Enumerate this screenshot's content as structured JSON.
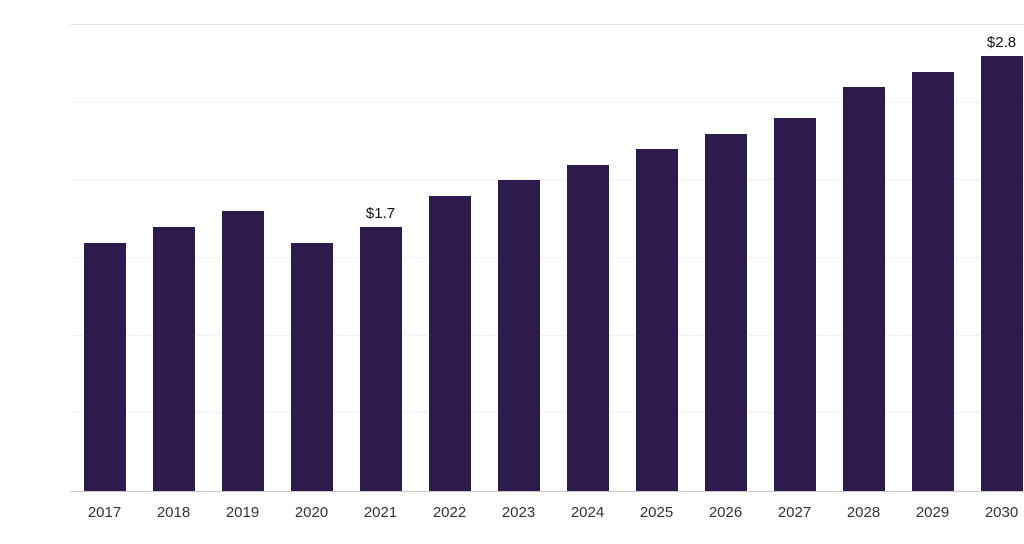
{
  "chart_data": {
    "type": "bar",
    "title": "",
    "xlabel": "",
    "ylabel": "",
    "categories": [
      "2017",
      "2018",
      "2019",
      "2020",
      "2021",
      "2022",
      "2023",
      "2024",
      "2025",
      "2026",
      "2027",
      "2028",
      "2029",
      "2030"
    ],
    "values": [
      1.6,
      1.7,
      1.8,
      1.6,
      1.7,
      1.9,
      2.0,
      2.1,
      2.2,
      2.3,
      2.4,
      2.6,
      2.7,
      2.8
    ],
    "data_labels": [
      "",
      "",
      "",
      "",
      "$1.7",
      "",
      "",
      "",
      "",
      "",
      "",
      "",
      "",
      "$2.8"
    ],
    "ylim": [
      0,
      3.0
    ],
    "grid_step": 0.5,
    "grid": "horizontal",
    "legend": "none",
    "bar_color": "#2d1b4e",
    "axis_line_color": "#c9c9c9",
    "gridline_color": "#f2f2f2"
  }
}
